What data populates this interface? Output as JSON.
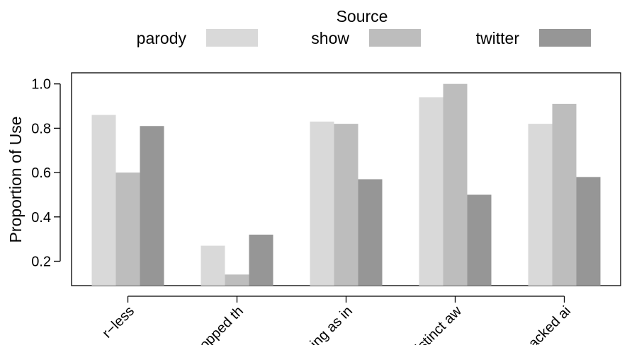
{
  "chart_data": {
    "type": "bar",
    "ylabel": "Proportion of Use",
    "legend_title": "Source",
    "legend_position": "top",
    "grid": false,
    "categories": [
      "r−less",
      "stopped th",
      "ing as in",
      "distinct aw",
      "backed ai"
    ],
    "series": [
      {
        "name": "parody",
        "color": "#d9d9d9",
        "values": [
          0.86,
          0.27,
          0.83,
          0.94,
          0.82
        ]
      },
      {
        "name": "show",
        "color": "#bdbdbd",
        "values": [
          0.6,
          0.14,
          0.82,
          1.0,
          0.91
        ]
      },
      {
        "name": "twitter",
        "color": "#969696",
        "values": [
          0.81,
          0.32,
          0.57,
          0.5,
          0.58
        ]
      }
    ],
    "ylim": [
      0.09,
      1.05
    ],
    "yticks": [
      0.2,
      0.4,
      0.6,
      0.8,
      1.0
    ],
    "ytick_labels": [
      "0.2",
      "0.4",
      "0.6",
      "0.8",
      "1.0"
    ]
  }
}
